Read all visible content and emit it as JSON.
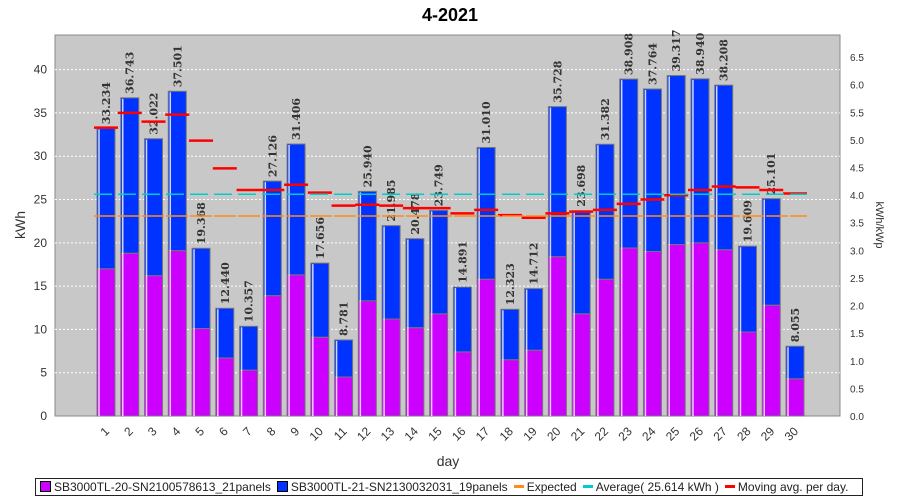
{
  "chart_data": {
    "type": "bar",
    "title": "4-2021",
    "xlabel": "day",
    "ylabel": "kWh",
    "y2label": "kWh/kWp",
    "ylim": [
      0,
      44
    ],
    "y2lim": [
      0,
      6.9
    ],
    "yticks": [
      0,
      5,
      10,
      15,
      20,
      25,
      30,
      35,
      40
    ],
    "y2ticks": [
      "0.0",
      "0.5",
      "1.0",
      "1.5",
      "2.0",
      "2.5",
      "3.0",
      "3.5",
      "4.0",
      "4.5",
      "5.0",
      "5.5",
      "6.0",
      "6.5"
    ],
    "categories": [
      "1",
      "2",
      "3",
      "4",
      "5",
      "6",
      "7",
      "8",
      "9",
      "10",
      "11",
      "12",
      "13",
      "14",
      "15",
      "16",
      "17",
      "18",
      "19",
      "20",
      "21",
      "22",
      "23",
      "24",
      "25",
      "26",
      "27",
      "28",
      "29",
      "30"
    ],
    "totals": [
      "33.234",
      "36.743",
      "32.022",
      "37.501",
      "19.368",
      "12.440",
      "10.357",
      "27.126",
      "31.406",
      "17.656",
      "8.781",
      "25.940",
      "21.985",
      "20.478",
      "23.749",
      "14.891",
      "31.010",
      "12.323",
      "14.712",
      "35.728",
      "23.698",
      "31.382",
      "38.908",
      "37.764",
      "39.317",
      "38.940",
      "38.208",
      "19.609",
      "25.101",
      "8.055"
    ],
    "series": [
      {
        "name": "SB3000TL-20-SN2100578613_21panels",
        "color": "#cc00ff",
        "values": [
          17.0,
          18.8,
          16.2,
          19.1,
          10.1,
          6.7,
          5.3,
          13.9,
          16.3,
          9.1,
          4.5,
          13.3,
          11.2,
          10.2,
          11.8,
          7.4,
          15.8,
          6.5,
          7.6,
          18.4,
          11.8,
          15.8,
          19.4,
          19.0,
          19.8,
          20.0,
          19.2,
          9.7,
          12.8,
          4.3
        ]
      },
      {
        "name": "SB3000TL-21-SN2130032031_19panels",
        "color": "#0033ff",
        "values": [
          16.234,
          17.943,
          15.822,
          18.401,
          9.268,
          5.74,
          5.057,
          13.226,
          15.106,
          8.556,
          4.281,
          12.64,
          10.785,
          10.278,
          11.949,
          7.491,
          15.21,
          5.823,
          7.112,
          17.328,
          11.898,
          15.582,
          19.508,
          18.764,
          19.517,
          18.94,
          19.008,
          9.909,
          12.301,
          3.755
        ]
      }
    ],
    "expected": {
      "name": "Expected",
      "color": "#ff8c1a",
      "value": 23.1
    },
    "average": {
      "name": "Average( 25.614 kWh )",
      "color": "#00cccc",
      "value": 25.614
    },
    "moving_avg": {
      "name": "Moving avg. per day.",
      "color": "#ff0000",
      "values": [
        33.3,
        35.0,
        34.0,
        34.8,
        31.8,
        28.6,
        26.1,
        26.1,
        26.7,
        25.8,
        24.3,
        24.4,
        24.3,
        24.0,
        24.0,
        23.4,
        23.8,
        23.2,
        22.9,
        23.4,
        23.6,
        23.8,
        24.5,
        25.0,
        25.5,
        26.1,
        26.5,
        26.4,
        26.1,
        25.7
      ]
    },
    "legend": "bottom"
  }
}
